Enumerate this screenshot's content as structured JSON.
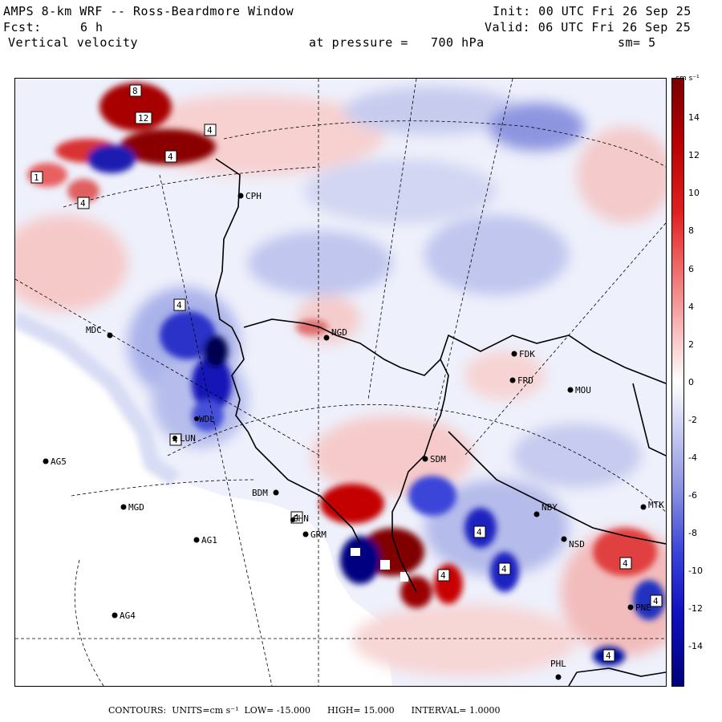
{
  "header": {
    "title": "AMPS 8-km WRF -- Ross-Beardmore Window",
    "forecast_label": "Fcst:",
    "forecast_value": "6 h",
    "field": "Vertical velocity",
    "pressure_label": "at pressure =",
    "pressure_value": "700 hPa",
    "init": "Init: 00 UTC Fri 26 Sep 25",
    "valid": "Valid: 06 UTC Fri 26 Sep 25",
    "smoothing": "sm= 5"
  },
  "colorbar": {
    "units": "cm s⁻¹",
    "ticks": [
      "14",
      "12",
      "10",
      "8",
      "6",
      "4",
      "2",
      "0",
      "-2",
      "-4",
      "-6",
      "-8",
      "-10",
      "-12",
      "-14"
    ],
    "colors": {
      "max": "#7a0000",
      "high": "#e02020",
      "mid_pos": "#f8c0c0",
      "zero": "#ffffff",
      "mid_neg": "#c8ccf0",
      "low": "#3a44d8",
      "min": "#00007a",
      "background": "#eef0fb",
      "ice_shelf": "#ffffff"
    }
  },
  "stations": [
    {
      "id": "CPH"
    },
    {
      "id": "MDC"
    },
    {
      "id": "NGD"
    },
    {
      "id": "FDK"
    },
    {
      "id": "FRD"
    },
    {
      "id": "MOU"
    },
    {
      "id": "AG5"
    },
    {
      "id": "SDM"
    },
    {
      "id": "BDM"
    },
    {
      "id": "MGD"
    },
    {
      "id": "GRM"
    },
    {
      "id": "NBY"
    },
    {
      "id": "MTK"
    },
    {
      "id": "AG1"
    },
    {
      "id": "NSD"
    },
    {
      "id": "AG4"
    },
    {
      "id": "PHL"
    },
    {
      "id": "PNE"
    },
    {
      "id": "GHN"
    },
    {
      "id": "LUN"
    },
    {
      "id": "WDL"
    }
  ],
  "contour_labels": [
    "8",
    "12",
    "4",
    "4",
    "4",
    "1",
    "4",
    "4",
    "4",
    "4",
    "4",
    "4",
    "4",
    "4",
    "4"
  ],
  "footer": {
    "contours_label": "CONTOURS:",
    "units_label": "UNITS=cm s⁻¹",
    "low": "LOW= -15.000",
    "high": "HIGH= 15.000",
    "interval": "INTERVAL= 1.0000"
  }
}
